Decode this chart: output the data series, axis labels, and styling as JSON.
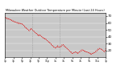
{
  "title": "Milwaukee Weather Outdoor Temperature per Minute (Last 24 Hours)",
  "line_color": "#dd0000",
  "bg_color": "#ffffff",
  "plot_bg_color": "#c8c8c8",
  "grid_color": "#ffffff",
  "ymin": 10,
  "ymax": 75,
  "yticks": [
    20,
    30,
    40,
    50,
    60,
    70
  ],
  "vlines": [
    0.27,
    0.54
  ],
  "x_values": [
    0.0,
    0.0071,
    0.0143,
    0.0214,
    0.0286,
    0.0357,
    0.0429,
    0.05,
    0.0571,
    0.0643,
    0.0714,
    0.0786,
    0.0857,
    0.0929,
    0.1,
    0.1071,
    0.1143,
    0.1214,
    0.1286,
    0.1357,
    0.1429,
    0.15,
    0.1571,
    0.1643,
    0.1714,
    0.1786,
    0.1857,
    0.1929,
    0.2,
    0.2071,
    0.2143,
    0.2214,
    0.2286,
    0.2357,
    0.2429,
    0.25,
    0.2571,
    0.2643,
    0.2714,
    0.2786,
    0.2857,
    0.2929,
    0.3,
    0.3071,
    0.3143,
    0.3214,
    0.3286,
    0.3357,
    0.3429,
    0.35,
    0.3571,
    0.3643,
    0.3714,
    0.3786,
    0.3857,
    0.3929,
    0.4,
    0.4071,
    0.4143,
    0.4214,
    0.4286,
    0.4357,
    0.4429,
    0.45,
    0.4571,
    0.4643,
    0.4714,
    0.4786,
    0.4857,
    0.4929,
    0.5,
    0.5071,
    0.5143,
    0.5214,
    0.5286,
    0.5357,
    0.5429,
    0.55,
    0.5571,
    0.5643,
    0.5714,
    0.5786,
    0.5857,
    0.5929,
    0.6,
    0.6071,
    0.6143,
    0.6214,
    0.6286,
    0.6357,
    0.6429,
    0.65,
    0.6571,
    0.6643,
    0.6714,
    0.6786,
    0.6857,
    0.6929,
    0.7,
    0.7071,
    0.7143,
    0.7214,
    0.7286,
    0.7357,
    0.7429,
    0.75,
    0.7571,
    0.7643,
    0.7714,
    0.7786,
    0.7857,
    0.7929,
    0.8,
    0.8071,
    0.8143,
    0.8214,
    0.8286,
    0.8357,
    0.8429,
    0.85,
    0.8571,
    0.8643,
    0.8714,
    0.8786,
    0.8857,
    0.8929,
    0.9,
    0.9071,
    0.9143,
    0.9214,
    0.9286,
    0.9357,
    0.9429,
    0.95,
    0.9571,
    0.9643,
    0.9714,
    0.9786,
    0.9857,
    0.9929,
    1.0
  ],
  "y_values": [
    68,
    68,
    67,
    67,
    66,
    66,
    65,
    65,
    64,
    64,
    63,
    63,
    62,
    62,
    62,
    61,
    61,
    61,
    60,
    60,
    60,
    60,
    59,
    59,
    58,
    57,
    56,
    55,
    54,
    53,
    52,
    51,
    50,
    49,
    50,
    51,
    52,
    51,
    50,
    49,
    48,
    47,
    46,
    45,
    44,
    43,
    42,
    42,
    43,
    42,
    41,
    40,
    39,
    38,
    38,
    37,
    37,
    36,
    35,
    34,
    33,
    32,
    31,
    30,
    29,
    28,
    27,
    26,
    25,
    24,
    24,
    25,
    26,
    27,
    26,
    25,
    25,
    26,
    27,
    28,
    29,
    28,
    27,
    26,
    25,
    24,
    23,
    22,
    21,
    20,
    19,
    18,
    17,
    16,
    16,
    17,
    17,
    18,
    18,
    17,
    16,
    16,
    17,
    18,
    19,
    20,
    20,
    21,
    21,
    20,
    20,
    19,
    19,
    18,
    18,
    17,
    17,
    16,
    16,
    15,
    15,
    16,
    16,
    17,
    17,
    18,
    19,
    20,
    21,
    22,
    22,
    23,
    23,
    22,
    22,
    21,
    20,
    19,
    19,
    20,
    23
  ],
  "xtick_positions": [
    0.0,
    0.083,
    0.167,
    0.25,
    0.333,
    0.417,
    0.5,
    0.583,
    0.667,
    0.75,
    0.833,
    0.917,
    1.0
  ],
  "xtick_labels": [
    "1p",
    "3p",
    "5p",
    "7p",
    "9p",
    "11p",
    "1a",
    "3a",
    "5a",
    "7a",
    "9a",
    "11a",
    "1p"
  ]
}
